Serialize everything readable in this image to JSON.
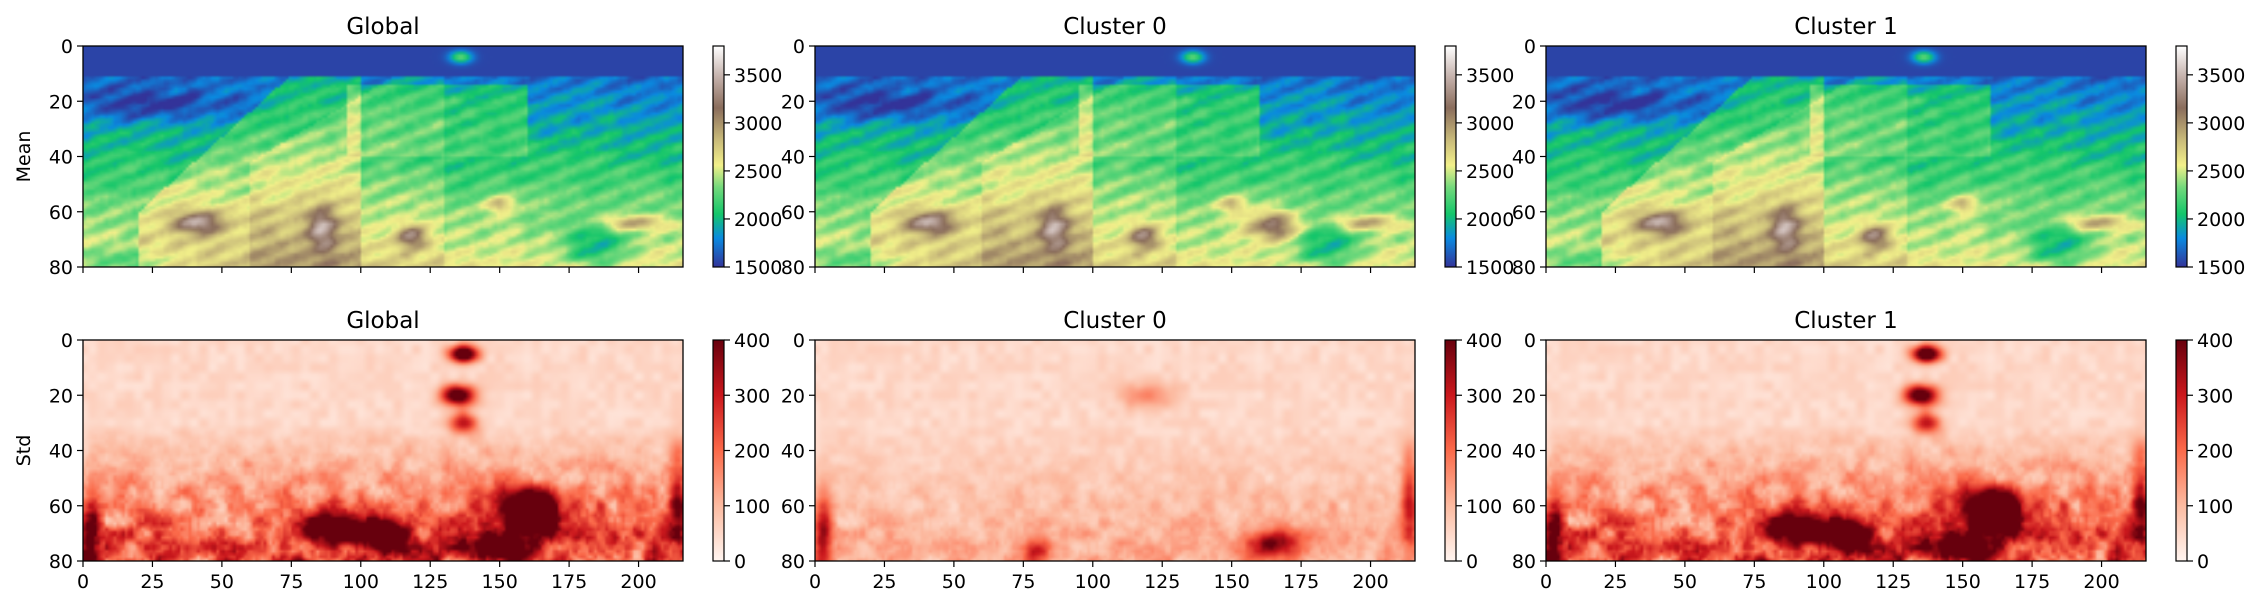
{
  "chart_data": [
    {
      "type": "heatmap",
      "title": "Global",
      "ylabel": "Mean",
      "xlim": [
        0,
        216
      ],
      "ylim": [
        80,
        0
      ],
      "xticks": [
        "0",
        "25",
        "50",
        "75",
        "100",
        "125",
        "150",
        "175",
        "200"
      ],
      "yticks": [
        "0",
        "20",
        "40",
        "60",
        "80"
      ],
      "colormap": "terrain",
      "colorbar": {
        "range": [
          1500,
          3800
        ],
        "ticks": [
          "1500",
          "2000",
          "2500",
          "3000",
          "3500"
        ]
      }
    },
    {
      "type": "heatmap",
      "title": "Cluster 0",
      "xlim": [
        0,
        216
      ],
      "ylim": [
        80,
        0
      ],
      "xticks": [
        "0",
        "25",
        "50",
        "75",
        "100",
        "125",
        "150",
        "175",
        "200"
      ],
      "yticks": [
        "0",
        "20",
        "40",
        "60",
        "80"
      ],
      "colormap": "terrain",
      "colorbar": {
        "range": [
          1500,
          3800
        ],
        "ticks": [
          "1500",
          "2000",
          "2500",
          "3000",
          "3500"
        ]
      }
    },
    {
      "type": "heatmap",
      "title": "Cluster 1",
      "xlim": [
        0,
        216
      ],
      "ylim": [
        80,
        0
      ],
      "xticks": [
        "0",
        "25",
        "50",
        "75",
        "100",
        "125",
        "150",
        "175",
        "200"
      ],
      "yticks": [
        "0",
        "20",
        "40",
        "60",
        "80"
      ],
      "colormap": "terrain",
      "colorbar": {
        "range": [
          1500,
          3800
        ],
        "ticks": [
          "1500",
          "2000",
          "2500",
          "3000",
          "3500"
        ]
      }
    },
    {
      "type": "heatmap",
      "title": "Global",
      "ylabel": "Std",
      "xlim": [
        0,
        216
      ],
      "ylim": [
        80,
        0
      ],
      "xticks": [
        "0",
        "25",
        "50",
        "75",
        "100",
        "125",
        "150",
        "175",
        "200"
      ],
      "yticks": [
        "0",
        "20",
        "40",
        "60",
        "80"
      ],
      "colormap": "Reds",
      "colorbar": {
        "range": [
          0,
          400
        ],
        "ticks": [
          "0",
          "100",
          "200",
          "300",
          "400"
        ]
      }
    },
    {
      "type": "heatmap",
      "title": "Cluster 0",
      "xlim": [
        0,
        216
      ],
      "ylim": [
        80,
        0
      ],
      "xticks": [
        "0",
        "25",
        "50",
        "75",
        "100",
        "125",
        "150",
        "175",
        "200"
      ],
      "yticks": [
        "0",
        "20",
        "40",
        "60",
        "80"
      ],
      "colormap": "Reds",
      "colorbar": {
        "range": [
          0,
          400
        ],
        "ticks": [
          "0",
          "100",
          "200",
          "300",
          "400"
        ]
      }
    },
    {
      "type": "heatmap",
      "title": "Cluster 1",
      "xlim": [
        0,
        216
      ],
      "ylim": [
        80,
        0
      ],
      "xticks": [
        "0",
        "25",
        "50",
        "75",
        "100",
        "125",
        "150",
        "175",
        "200"
      ],
      "yticks": [
        "0",
        "20",
        "40",
        "60",
        "80"
      ],
      "colormap": "Reds",
      "colorbar": {
        "range": [
          0,
          400
        ],
        "ticks": [
          "0",
          "100",
          "200",
          "300",
          "400"
        ]
      }
    }
  ]
}
